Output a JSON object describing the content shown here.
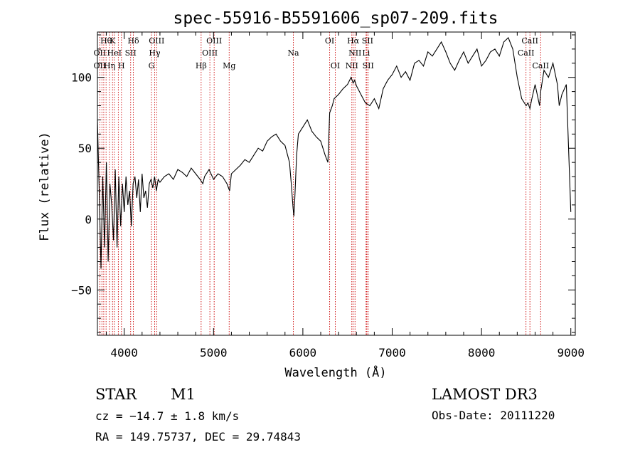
{
  "chart_data": {
    "type": "line",
    "title": "spec-55916-B5591606_sp07-209.fits",
    "xlabel": "Wavelength (Å)",
    "ylabel": "Flux (relative)",
    "xlim": [
      3700,
      9050
    ],
    "ylim": [
      -82,
      132
    ],
    "xticks": [
      4000,
      5000,
      6000,
      7000,
      8000,
      9000
    ],
    "yticks": [
      -50,
      0,
      50,
      100
    ],
    "grid": false,
    "series": [
      {
        "name": "flux",
        "x": [
          3700,
          3720,
          3740,
          3760,
          3780,
          3800,
          3820,
          3840,
          3860,
          3880,
          3900,
          3920,
          3940,
          3960,
          3980,
          4000,
          4020,
          4040,
          4060,
          4080,
          4100,
          4120,
          4140,
          4160,
          4180,
          4200,
          4220,
          4240,
          4260,
          4280,
          4300,
          4320,
          4340,
          4360,
          4380,
          4400,
          4450,
          4500,
          4550,
          4600,
          4650,
          4700,
          4750,
          4800,
          4850,
          4880,
          4900,
          4950,
          5000,
          5050,
          5100,
          5150,
          5180,
          5200,
          5250,
          5300,
          5350,
          5400,
          5450,
          5500,
          5550,
          5600,
          5650,
          5700,
          5750,
          5800,
          5850,
          5870,
          5890,
          5900,
          5910,
          5930,
          5950,
          6000,
          6050,
          6100,
          6150,
          6200,
          6250,
          6280,
          6300,
          6330,
          6350,
          6400,
          6450,
          6500,
          6540,
          6563,
          6580,
          6600,
          6650,
          6700,
          6750,
          6800,
          6850,
          6900,
          6950,
          7000,
          7050,
          7100,
          7150,
          7200,
          7250,
          7300,
          7350,
          7400,
          7450,
          7500,
          7550,
          7600,
          7650,
          7700,
          7750,
          7800,
          7850,
          7900,
          7950,
          8000,
          8050,
          8100,
          8150,
          8200,
          8250,
          8300,
          8350,
          8400,
          8450,
          8500,
          8520,
          8542,
          8560,
          8600,
          8650,
          8662,
          8700,
          8750,
          8800,
          8850,
          8870,
          8900,
          8950,
          9000
        ],
        "values": [
          70,
          20,
          -35,
          30,
          -20,
          40,
          -30,
          25,
          10,
          -15,
          35,
          -20,
          30,
          -5,
          25,
          5,
          30,
          10,
          20,
          -5,
          25,
          30,
          15,
          28,
          5,
          32,
          15,
          20,
          8,
          25,
          28,
          22,
          30,
          20,
          28,
          26,
          30,
          32,
          28,
          35,
          33,
          30,
          36,
          32,
          28,
          25,
          30,
          35,
          28,
          32,
          30,
          25,
          20,
          32,
          35,
          38,
          42,
          40,
          45,
          50,
          48,
          55,
          58,
          60,
          55,
          52,
          40,
          25,
          8,
          2,
          15,
          45,
          60,
          65,
          70,
          62,
          58,
          55,
          45,
          40,
          75,
          80,
          85,
          88,
          92,
          95,
          100,
          96,
          98,
          94,
          88,
          82,
          80,
          85,
          78,
          92,
          98,
          102,
          108,
          100,
          104,
          98,
          110,
          112,
          108,
          118,
          115,
          120,
          125,
          118,
          110,
          105,
          112,
          118,
          110,
          115,
          120,
          108,
          112,
          118,
          120,
          115,
          125,
          128,
          120,
          100,
          85,
          80,
          82,
          78,
          84,
          95,
          80,
          90,
          105,
          100,
          110,
          95,
          80,
          88,
          95,
          5
        ]
      }
    ],
    "annotations": {
      "row1": [
        {
          "wl": 3797,
          "text": "Hθ"
        },
        {
          "wl": 3870,
          "text": "K"
        },
        {
          "wl": 4102,
          "text": "Hδ"
        },
        {
          "wl": 4363,
          "text": "OIII"
        },
        {
          "wl": 5007,
          "text": "OIII"
        },
        {
          "wl": 6300,
          "text": "OI"
        },
        {
          "wl": 6563,
          "text": "Hα"
        },
        {
          "wl": 6724,
          "text": "SII"
        },
        {
          "wl": 8542,
          "text": "CaII"
        }
      ],
      "row2": [
        {
          "wl": 3727,
          "text": "OII"
        },
        {
          "wl": 3889,
          "text": "HeI"
        },
        {
          "wl": 4072,
          "text": "SII"
        },
        {
          "wl": 4341,
          "text": "Hγ"
        },
        {
          "wl": 4959,
          "text": "OIII"
        },
        {
          "wl": 5893,
          "text": "Na"
        },
        {
          "wl": 6584,
          "text": "NII"
        },
        {
          "wl": 6708,
          "text": "Li"
        },
        {
          "wl": 8498,
          "text": "CaII"
        }
      ],
      "row3": [
        {
          "wl": 3727,
          "text": "OII"
        },
        {
          "wl": 3835,
          "text": "Hη"
        },
        {
          "wl": 3969,
          "text": "H"
        },
        {
          "wl": 4305,
          "text": "G"
        },
        {
          "wl": 4861,
          "text": "Hβ"
        },
        {
          "wl": 5175,
          "text": "Mg"
        },
        {
          "wl": 6363,
          "text": "OI"
        },
        {
          "wl": 6548,
          "text": "NII"
        },
        {
          "wl": 6731,
          "text": "SII"
        },
        {
          "wl": 8662,
          "text": "CaII"
        }
      ],
      "line_wavelengths": [
        3727,
        3750,
        3771,
        3797,
        3835,
        3869,
        3889,
        3934,
        3969,
        4072,
        4102,
        4305,
        4341,
        4363,
        4861,
        4959,
        5007,
        5175,
        5893,
        6300,
        6363,
        6548,
        6563,
        6584,
        6708,
        6716,
        6731,
        8498,
        8542,
        8662
      ]
    },
    "info": {
      "class_label": "STAR",
      "subclass": "M1",
      "cz_text": "cz = −14.7 ± 1.8 km/s",
      "coords_text": "RA = 149.75737, DEC =  29.74843",
      "survey": "LAMOST DR3",
      "obs_date": "Obs-Date: 20111220"
    },
    "colors": {
      "spectrum": "#000000",
      "line_markers": "#cc0000",
      "axes": "#000000"
    }
  }
}
